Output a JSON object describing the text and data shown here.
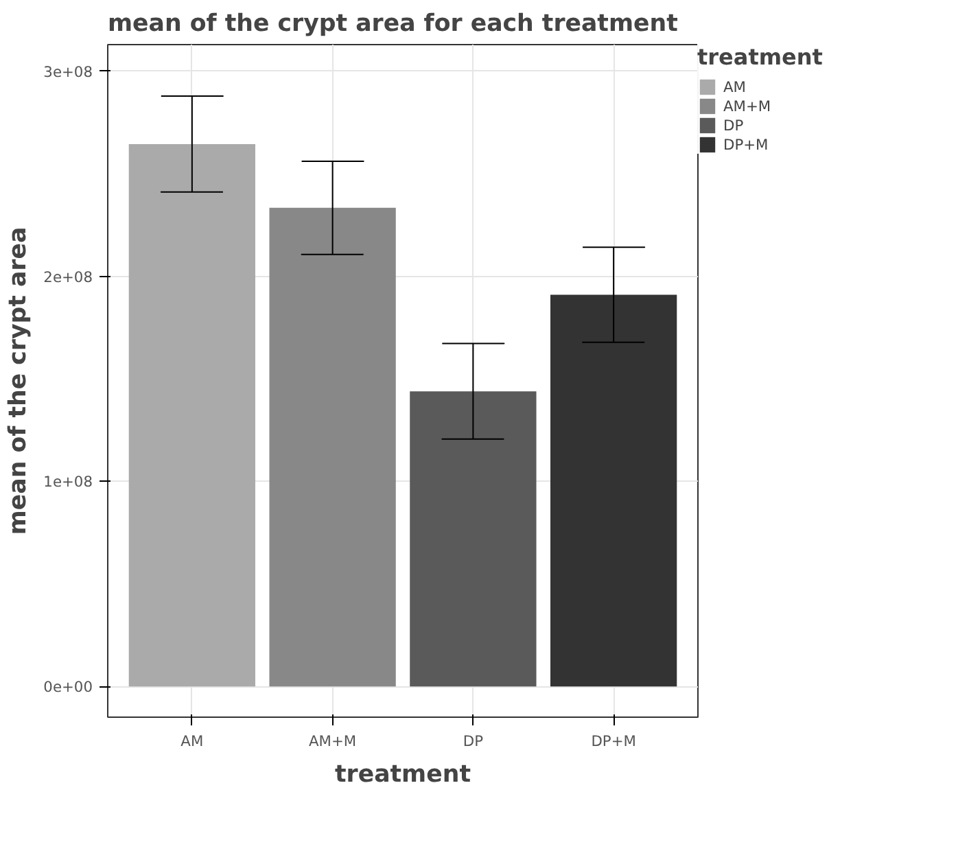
{
  "chart_data": {
    "type": "bar",
    "title": "mean of the crypt area for each treatment",
    "xlabel": "treatment",
    "ylabel": "mean of the crypt area",
    "legend_title": "treatment",
    "categories": [
      "AM",
      "AM+M",
      "DP",
      "DP+M"
    ],
    "series": [
      {
        "name": "AM",
        "color": "#aaaaaa",
        "values": [
          264500000,
          null,
          null,
          null
        ],
        "errors": [
          23400000,
          null,
          null,
          null
        ]
      },
      {
        "name": "AM+M",
        "color": "#888888",
        "values": [
          null,
          233400000,
          null,
          null
        ],
        "errors": [
          null,
          22700000,
          null,
          null
        ]
      },
      {
        "name": "DP",
        "color": "#5a5a5a",
        "values": [
          null,
          null,
          143900000,
          null
        ],
        "errors": [
          null,
          null,
          23300000,
          null
        ]
      },
      {
        "name": "DP+M",
        "color": "#333333",
        "values": [
          null,
          null,
          null,
          191000000
        ],
        "errors": [
          null,
          null,
          null,
          23200000
        ]
      }
    ],
    "ylim": [
      -15000000,
      313000000
    ],
    "yticks": [
      {
        "value": 0,
        "label": "0e+00"
      },
      {
        "value": 100000000,
        "label": "1e+08"
      },
      {
        "value": 200000000,
        "label": "2e+08"
      },
      {
        "value": 300000000,
        "label": "3e+08"
      }
    ],
    "grid": true,
    "legend": "right"
  }
}
